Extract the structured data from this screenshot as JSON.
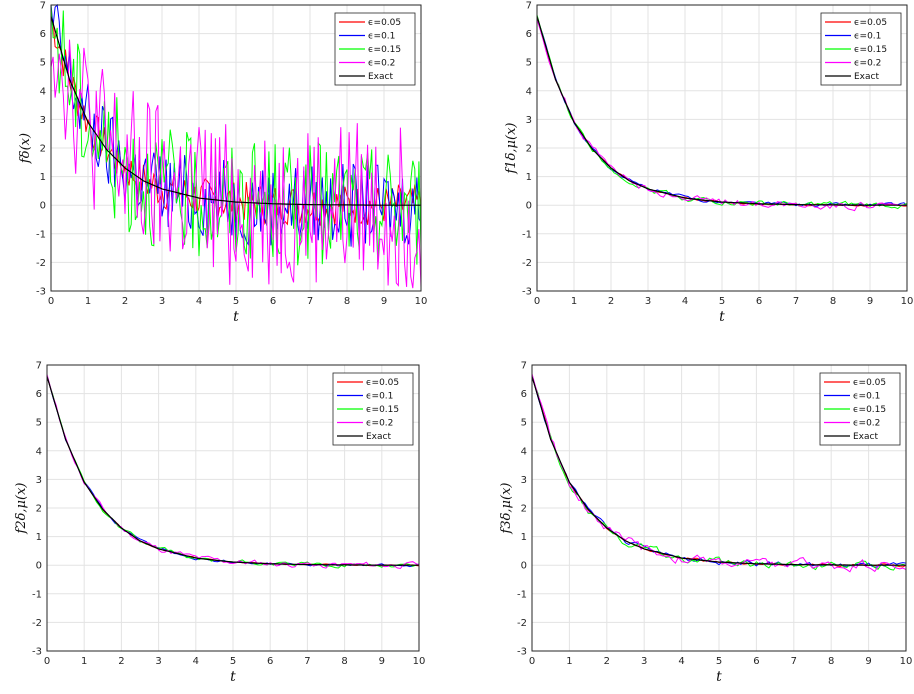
{
  "colors": {
    "red": "#ff0000",
    "blue": "#0000ff",
    "green": "#00ff00",
    "magenta": "#ff00ff",
    "black": "#000000",
    "grid": "#e3e3e3"
  },
  "chart_data": [
    {
      "type": "line",
      "ylabel": "fδ(x)",
      "xlabel": "t",
      "xlim": [
        0,
        10
      ],
      "ylim": [
        -3,
        7
      ],
      "xticks": [
        "0",
        "1",
        "2",
        "3",
        "4",
        "5",
        "6",
        "7",
        "8",
        "9",
        "10"
      ],
      "yticks": [
        "7",
        "6",
        "5",
        "4",
        "3",
        "2",
        "1",
        "0",
        "-1",
        "-2",
        "-3"
      ],
      "grid": true,
      "legend_position": "top-right",
      "noise_level": 2.2,
      "series": [
        {
          "name": "ϵ=0.05",
          "eps": 0.05,
          "color": "#ff0000"
        },
        {
          "name": "ϵ=0.1",
          "eps": 0.1,
          "color": "#0000ff"
        },
        {
          "name": "ϵ=0.15",
          "eps": 0.15,
          "color": "#00ff00"
        },
        {
          "name": "ϵ=0.2",
          "eps": 0.2,
          "color": "#ff00ff"
        },
        {
          "name": "Exact",
          "color": "#000000",
          "x": [
            0,
            0.5,
            1,
            1.5,
            2,
            2.5,
            3,
            4,
            5,
            6,
            7,
            8,
            9,
            10
          ],
          "y": [
            6.6,
            4.4,
            2.9,
            1.95,
            1.3,
            0.85,
            0.57,
            0.25,
            0.11,
            0.05,
            0.02,
            0.01,
            0.0,
            0.0
          ]
        }
      ]
    },
    {
      "type": "line",
      "ylabel": "f1δ,μ(x)",
      "xlabel": "t",
      "xlim": [
        0,
        10
      ],
      "ylim": [
        -3,
        7
      ],
      "xticks": [
        "0",
        "1",
        "2",
        "3",
        "4",
        "5",
        "6",
        "7",
        "8",
        "9",
        "10"
      ],
      "yticks": [
        "7",
        "6",
        "5",
        "4",
        "3",
        "2",
        "1",
        "0",
        "-1",
        "-2",
        "-3"
      ],
      "grid": true,
      "legend_position": "top-right",
      "noise_level": 0.12,
      "series": [
        {
          "name": "ϵ=0.05",
          "eps": 0.05,
          "color": "#ff0000"
        },
        {
          "name": "ϵ=0.1",
          "eps": 0.1,
          "color": "#0000ff"
        },
        {
          "name": "ϵ=0.15",
          "eps": 0.15,
          "color": "#00ff00"
        },
        {
          "name": "ϵ=0.2",
          "eps": 0.2,
          "color": "#ff00ff"
        },
        {
          "name": "Exact",
          "color": "#000000",
          "x": [
            0,
            0.5,
            1,
            1.5,
            2,
            2.5,
            3,
            4,
            5,
            6,
            7,
            8,
            9,
            10
          ],
          "y": [
            6.6,
            4.4,
            2.9,
            1.95,
            1.3,
            0.85,
            0.57,
            0.25,
            0.11,
            0.05,
            0.02,
            0.01,
            0.0,
            0.0
          ]
        }
      ]
    },
    {
      "type": "line",
      "ylabel": "f2δ,μ(x)",
      "xlabel": "t",
      "xlim": [
        0,
        10
      ],
      "ylim": [
        -3,
        7
      ],
      "xticks": [
        "0",
        "1",
        "2",
        "3",
        "4",
        "5",
        "6",
        "7",
        "8",
        "9",
        "10"
      ],
      "yticks": [
        "7",
        "6",
        "5",
        "4",
        "3",
        "2",
        "1",
        "0",
        "-1",
        "-2",
        "-3"
      ],
      "grid": true,
      "legend_position": "top-right",
      "noise_level": 0.09,
      "series": [
        {
          "name": "ϵ=0.05",
          "eps": 0.05,
          "color": "#ff0000"
        },
        {
          "name": "ϵ=0.1",
          "eps": 0.1,
          "color": "#0000ff"
        },
        {
          "name": "ϵ=0.15",
          "eps": 0.15,
          "color": "#00ff00"
        },
        {
          "name": "ϵ=0.2",
          "eps": 0.2,
          "color": "#ff00ff"
        },
        {
          "name": "Exact",
          "color": "#000000",
          "x": [
            0,
            0.5,
            1,
            1.5,
            2,
            2.5,
            3,
            4,
            5,
            6,
            7,
            8,
            9,
            10
          ],
          "y": [
            6.6,
            4.4,
            2.9,
            1.95,
            1.3,
            0.85,
            0.57,
            0.25,
            0.11,
            0.05,
            0.02,
            0.01,
            0.0,
            0.0
          ]
        }
      ]
    },
    {
      "type": "line",
      "ylabel": "f3δ,μ(x)",
      "xlabel": "t",
      "xlim": [
        0,
        10
      ],
      "ylim": [
        -3,
        7
      ],
      "xticks": [
        "0",
        "1",
        "2",
        "3",
        "4",
        "5",
        "6",
        "7",
        "8",
        "9",
        "10"
      ],
      "yticks": [
        "7",
        "6",
        "5",
        "4",
        "3",
        "2",
        "1",
        "0",
        "-1",
        "-2",
        "-3"
      ],
      "grid": true,
      "legend_position": "top-right",
      "noise_level": 0.16,
      "series": [
        {
          "name": "ϵ=0.05",
          "eps": 0.05,
          "color": "#ff0000"
        },
        {
          "name": "ϵ=0.1",
          "eps": 0.1,
          "color": "#0000ff"
        },
        {
          "name": "ϵ=0.15",
          "eps": 0.15,
          "color": "#00ff00"
        },
        {
          "name": "ϵ=0.2",
          "eps": 0.2,
          "color": "#ff00ff"
        },
        {
          "name": "Exact",
          "color": "#000000",
          "x": [
            0,
            0.5,
            1,
            1.5,
            2,
            2.5,
            3,
            4,
            5,
            6,
            7,
            8,
            9,
            10
          ],
          "y": [
            6.6,
            4.4,
            2.9,
            1.95,
            1.3,
            0.85,
            0.57,
            0.25,
            0.11,
            0.05,
            0.02,
            0.01,
            0.0,
            0.0
          ]
        }
      ]
    }
  ]
}
